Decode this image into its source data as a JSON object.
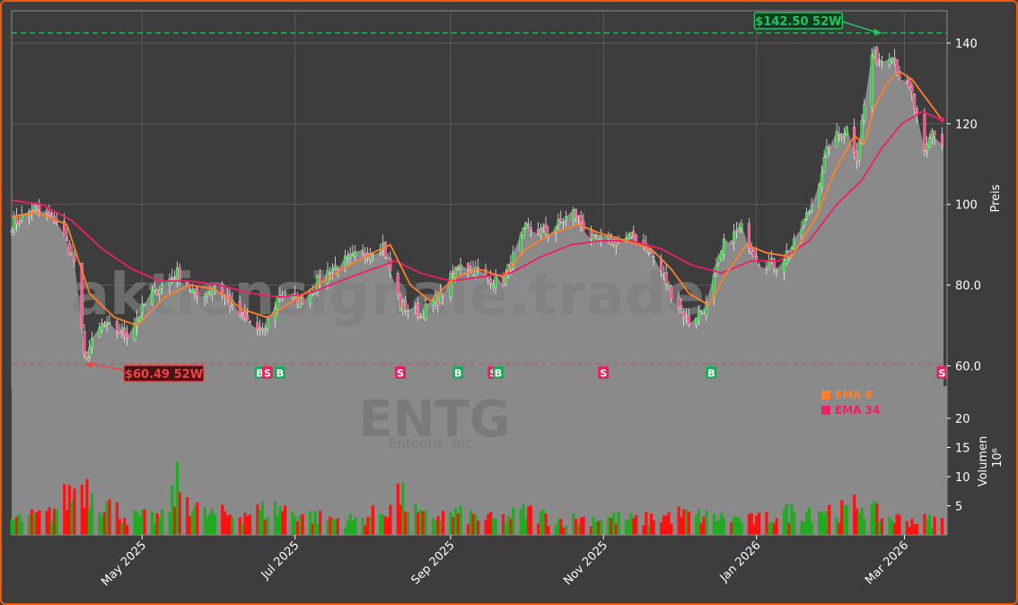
{
  "watermark": {
    "site": "aktiensignale.trade",
    "ticker": "ENTG",
    "company": "Entegris, Inc."
  },
  "colors": {
    "up": "#22aa22",
    "down": "#ff1111",
    "ema8": "#ff7f2a",
    "ema34": "#ee1e6a",
    "area": "#8a8a8a",
    "high_line": "#22c55e",
    "low_line": "#ef4444",
    "buy": "#1faa59",
    "sell": "#e0245e"
  },
  "legend": [
    {
      "label": "EMA 8",
      "color": "#ff7f2a"
    },
    {
      "label": "EMA 34",
      "color": "#ee1e6a"
    }
  ],
  "annotations": {
    "high": {
      "label": "$142.50 52W",
      "value": 142.5,
      "date": "2026-02-20"
    },
    "low": {
      "label": "$60.49 52W",
      "value": 60.49,
      "date": "2025-04-08"
    }
  },
  "chart_data": {
    "type": "candlestick",
    "x_range": [
      "2025-03-10",
      "2026-03-18"
    ],
    "price_axis": {
      "label": "Preis",
      "ticks": [
        "60.0",
        "80.0",
        "100",
        "120",
        "140"
      ],
      "tick_values": [
        60,
        80,
        100,
        120,
        140
      ],
      "range": [
        55,
        148
      ],
      "side": "right",
      "grid": true
    },
    "volume_axis": {
      "label": "Volumen",
      "unit": "10⁶",
      "ticks": [
        "5",
        "10",
        "15",
        "20"
      ],
      "tick_values": [
        5,
        10,
        15,
        20
      ],
      "range": [
        0,
        24
      ],
      "side": "right"
    },
    "x_ticks": [
      {
        "label": "May 2025",
        "date": "2025-05-01"
      },
      {
        "label": "Jul 2025",
        "date": "2025-07-01"
      },
      {
        "label": "Sep 2025",
        "date": "2025-09-01"
      },
      {
        "label": "Nov 2025",
        "date": "2025-11-01"
      },
      {
        "label": "Jan 2026",
        "date": "2026-01-01"
      },
      {
        "label": "Mar 2026",
        "date": "2026-03-01"
      }
    ],
    "close_keypoints": [
      [
        "2025-03-10",
        95
      ],
      [
        "2025-03-19",
        99
      ],
      [
        "2025-03-28",
        96
      ],
      [
        "2025-04-04",
        86
      ],
      [
        "2025-04-08",
        62
      ],
      [
        "2025-04-15",
        70
      ],
      [
        "2025-04-25",
        68
      ],
      [
        "2025-05-05",
        78
      ],
      [
        "2025-05-15",
        83
      ],
      [
        "2025-05-23",
        77
      ],
      [
        "2025-05-30",
        80
      ],
      [
        "2025-06-10",
        72
      ],
      [
        "2025-06-18",
        68
      ],
      [
        "2025-06-25",
        78
      ],
      [
        "2025-07-03",
        76
      ],
      [
        "2025-07-15",
        84
      ],
      [
        "2025-07-25",
        87
      ],
      [
        "2025-08-05",
        90
      ],
      [
        "2025-08-12",
        75
      ],
      [
        "2025-08-20",
        73
      ],
      [
        "2025-08-28",
        77
      ],
      [
        "2025-09-05",
        86
      ],
      [
        "2025-09-15",
        82
      ],
      [
        "2025-09-22",
        81
      ],
      [
        "2025-10-01",
        94
      ],
      [
        "2025-10-10",
        93
      ],
      [
        "2025-10-20",
        98
      ],
      [
        "2025-10-28",
        91
      ],
      [
        "2025-11-06",
        91
      ],
      [
        "2025-11-15",
        92
      ],
      [
        "2025-11-22",
        86
      ],
      [
        "2025-11-28",
        78
      ],
      [
        "2025-12-05",
        71
      ],
      [
        "2025-12-12",
        75
      ],
      [
        "2025-12-19",
        90
      ],
      [
        "2025-12-26",
        94
      ],
      [
        "2026-01-02",
        86
      ],
      [
        "2026-01-09",
        85
      ],
      [
        "2026-01-16",
        90
      ],
      [
        "2026-01-23",
        100
      ],
      [
        "2026-01-30",
        115
      ],
      [
        "2026-02-06",
        119
      ],
      [
        "2026-02-10",
        112
      ],
      [
        "2026-02-16",
        137
      ],
      [
        "2026-02-20",
        136
      ],
      [
        "2026-02-24",
        138
      ],
      [
        "2026-02-27",
        132
      ],
      [
        "2026-03-04",
        127
      ],
      [
        "2026-03-09",
        112
      ],
      [
        "2026-03-12",
        118
      ],
      [
        "2026-03-16",
        115
      ]
    ],
    "ema8": [
      [
        "2025-03-10",
        97
      ],
      [
        "2025-03-20",
        98
      ],
      [
        "2025-04-01",
        95
      ],
      [
        "2025-04-10",
        78
      ],
      [
        "2025-04-20",
        72
      ],
      [
        "2025-04-29",
        70
      ],
      [
        "2025-05-10",
        77
      ],
      [
        "2025-05-20",
        80
      ],
      [
        "2025-05-30",
        79
      ],
      [
        "2025-06-10",
        74
      ],
      [
        "2025-06-20",
        72
      ],
      [
        "2025-06-30",
        76
      ],
      [
        "2025-07-10",
        80
      ],
      [
        "2025-07-20",
        84
      ],
      [
        "2025-08-01",
        88
      ],
      [
        "2025-08-08",
        90
      ],
      [
        "2025-08-16",
        80
      ],
      [
        "2025-08-24",
        76
      ],
      [
        "2025-09-03",
        82
      ],
      [
        "2025-09-12",
        84
      ],
      [
        "2025-09-22",
        82
      ],
      [
        "2025-10-01",
        89
      ],
      [
        "2025-10-12",
        93
      ],
      [
        "2025-10-22",
        95
      ],
      [
        "2025-10-30",
        93
      ],
      [
        "2025-11-10",
        91
      ],
      [
        "2025-11-20",
        89
      ],
      [
        "2025-11-28",
        84
      ],
      [
        "2025-12-05",
        78
      ],
      [
        "2025-12-13",
        75
      ],
      [
        "2025-12-20",
        83
      ],
      [
        "2025-12-28",
        90
      ],
      [
        "2026-01-05",
        88
      ],
      [
        "2026-01-15",
        87
      ],
      [
        "2026-01-25",
        97
      ],
      [
        "2026-02-01",
        108
      ],
      [
        "2026-02-09",
        117
      ],
      [
        "2026-02-13",
        115
      ],
      [
        "2026-02-17",
        124
      ],
      [
        "2026-02-22",
        130
      ],
      [
        "2026-02-27",
        133
      ],
      [
        "2026-03-04",
        131
      ],
      [
        "2026-03-10",
        126
      ],
      [
        "2026-03-16",
        121
      ]
    ],
    "ema34": [
      [
        "2025-03-10",
        101
      ],
      [
        "2025-03-22",
        100
      ],
      [
        "2025-04-03",
        96
      ],
      [
        "2025-04-15",
        89
      ],
      [
        "2025-04-27",
        84
      ],
      [
        "2025-05-08",
        81
      ],
      [
        "2025-05-20",
        81
      ],
      [
        "2025-06-01",
        80
      ],
      [
        "2025-06-13",
        78
      ],
      [
        "2025-06-25",
        77
      ],
      [
        "2025-07-07",
        78
      ],
      [
        "2025-07-19",
        81
      ],
      [
        "2025-08-01",
        84
      ],
      [
        "2025-08-10",
        86
      ],
      [
        "2025-08-20",
        83
      ],
      [
        "2025-09-01",
        81
      ],
      [
        "2025-09-13",
        82
      ],
      [
        "2025-09-25",
        83
      ],
      [
        "2025-10-07",
        87
      ],
      [
        "2025-10-19",
        90
      ],
      [
        "2025-10-31",
        91
      ],
      [
        "2025-11-12",
        91
      ],
      [
        "2025-11-24",
        89
      ],
      [
        "2025-12-06",
        85
      ],
      [
        "2025-12-18",
        83
      ],
      [
        "2025-12-30",
        86
      ],
      [
        "2026-01-10",
        86
      ],
      [
        "2026-01-22",
        91
      ],
      [
        "2026-02-02",
        100
      ],
      [
        "2026-02-12",
        106
      ],
      [
        "2026-02-20",
        114
      ],
      [
        "2026-02-28",
        120
      ],
      [
        "2026-03-08",
        123
      ],
      [
        "2026-03-16",
        121
      ]
    ],
    "volume_keypoints": [
      [
        "2025-03-10",
        2.5
      ],
      [
        "2025-03-25",
        3.5
      ],
      [
        "2025-04-07",
        9
      ],
      [
        "2025-04-15",
        6
      ],
      [
        "2025-04-25",
        3
      ],
      [
        "2025-05-10",
        3
      ],
      [
        "2025-05-15",
        8.5
      ],
      [
        "2025-05-25",
        3.5
      ],
      [
        "2025-06-05",
        3.5
      ],
      [
        "2025-06-15",
        4
      ],
      [
        "2025-06-25",
        4.5
      ],
      [
        "2025-07-10",
        3
      ],
      [
        "2025-07-25",
        2.5
      ],
      [
        "2025-08-05",
        4
      ],
      [
        "2025-08-11",
        7
      ],
      [
        "2025-08-20",
        3
      ],
      [
        "2025-09-03",
        3.5
      ],
      [
        "2025-09-20",
        2.5
      ],
      [
        "2025-10-01",
        4
      ],
      [
        "2025-10-15",
        2.5
      ],
      [
        "2025-11-01",
        3
      ],
      [
        "2025-11-15",
        2.5
      ],
      [
        "2025-12-01",
        3.5
      ],
      [
        "2025-12-15",
        3
      ],
      [
        "2026-01-01",
        2.5
      ],
      [
        "2026-01-15",
        4
      ],
      [
        "2026-01-25",
        4.5
      ],
      [
        "2026-02-05",
        4
      ],
      [
        "2026-02-12",
        5.5
      ],
      [
        "2026-02-20",
        3
      ],
      [
        "2026-03-05",
        2.5
      ],
      [
        "2026-03-16",
        2.5
      ]
    ],
    "signals": [
      {
        "type": "B",
        "date": "2025-06-17"
      },
      {
        "type": "S",
        "date": "2025-06-20"
      },
      {
        "type": "B",
        "date": "2025-06-25"
      },
      {
        "type": "S",
        "date": "2025-08-12"
      },
      {
        "type": "B",
        "date": "2025-09-04"
      },
      {
        "type": "S",
        "date": "2025-09-18"
      },
      {
        "type": "B",
        "date": "2025-09-20"
      },
      {
        "type": "S",
        "date": "2025-11-01"
      },
      {
        "type": "B",
        "date": "2025-12-14"
      },
      {
        "type": "S",
        "date": "2026-03-16"
      }
    ]
  }
}
